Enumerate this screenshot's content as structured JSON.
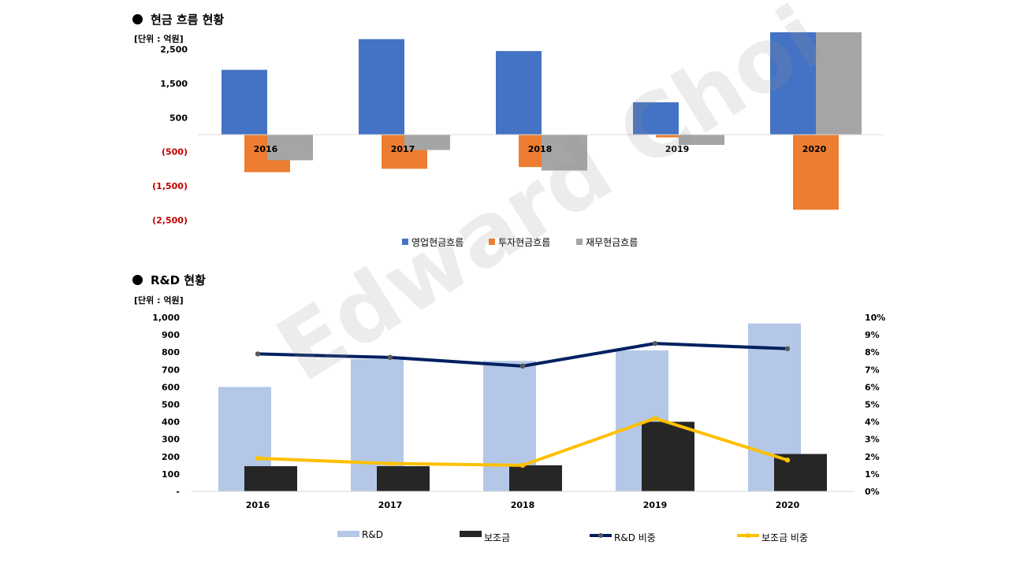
{
  "section1": {
    "title": "현금 흐름 현황",
    "unit": "[단위 : 억원]"
  },
  "section2": {
    "title": "R&D 현황",
    "unit": "[단위 : 억원]"
  },
  "watermark": "Edward Choi",
  "chart_data": [
    {
      "type": "bar",
      "categories": [
        "2016",
        "2017",
        "2018",
        "2019",
        "2020"
      ],
      "series": [
        {
          "name": "영업현금흐름",
          "color": "#4472C4",
          "values": [
            1900,
            2800,
            2450,
            950,
            3000
          ]
        },
        {
          "name": "투자현금흐름",
          "color": "#ED7D31",
          "values": [
            -1100,
            -1000,
            -950,
            -80,
            -2200
          ]
        },
        {
          "name": "재무현금흐름",
          "color": "#A5A5A5",
          "values": [
            -750,
            -450,
            -1050,
            -300,
            3000
          ]
        }
      ],
      "ylim": [
        -2500,
        2500
      ],
      "yticks": [
        2500,
        1500,
        500,
        -500,
        -1500,
        -2500
      ],
      "ytick_labels": [
        "2,500",
        "1,500",
        "500",
        "(500)",
        "(1,500)",
        "(2,500)"
      ],
      "negative_tick_color": "#C00000",
      "legend": "bottom"
    },
    {
      "type": "bar",
      "categories": [
        "2016",
        "2017",
        "2018",
        "2019",
        "2020"
      ],
      "bar_series": [
        {
          "name": "R&D",
          "color": "#B4C7E7",
          "values": [
            600,
            760,
            750,
            810,
            965
          ]
        },
        {
          "name": "보조금",
          "color": "#262626",
          "values": [
            145,
            145,
            150,
            400,
            215
          ]
        }
      ],
      "line_series": [
        {
          "name": "R&D 비중",
          "color": "#002060",
          "values": [
            7.9,
            7.7,
            7.2,
            8.5,
            8.2
          ]
        },
        {
          "name": "보조금 비중",
          "color": "#FFC000",
          "values": [
            1.9,
            1.6,
            1.5,
            4.2,
            1.8
          ]
        }
      ],
      "ylim": [
        0,
        1000
      ],
      "yticks": [
        0,
        100,
        200,
        300,
        400,
        500,
        600,
        700,
        800,
        900,
        1000
      ],
      "ytick_labels": [
        "-",
        "100",
        "200",
        "300",
        "400",
        "500",
        "600",
        "700",
        "800",
        "900",
        "1,000"
      ],
      "y2lim": [
        0,
        10
      ],
      "y2ticks": [
        0,
        1,
        2,
        3,
        4,
        5,
        6,
        7,
        8,
        9,
        10
      ],
      "y2tick_labels": [
        "0%",
        "1%",
        "2%",
        "3%",
        "4%",
        "5%",
        "6%",
        "7%",
        "8%",
        "9%",
        "10%"
      ],
      "legend": "bottom"
    }
  ]
}
